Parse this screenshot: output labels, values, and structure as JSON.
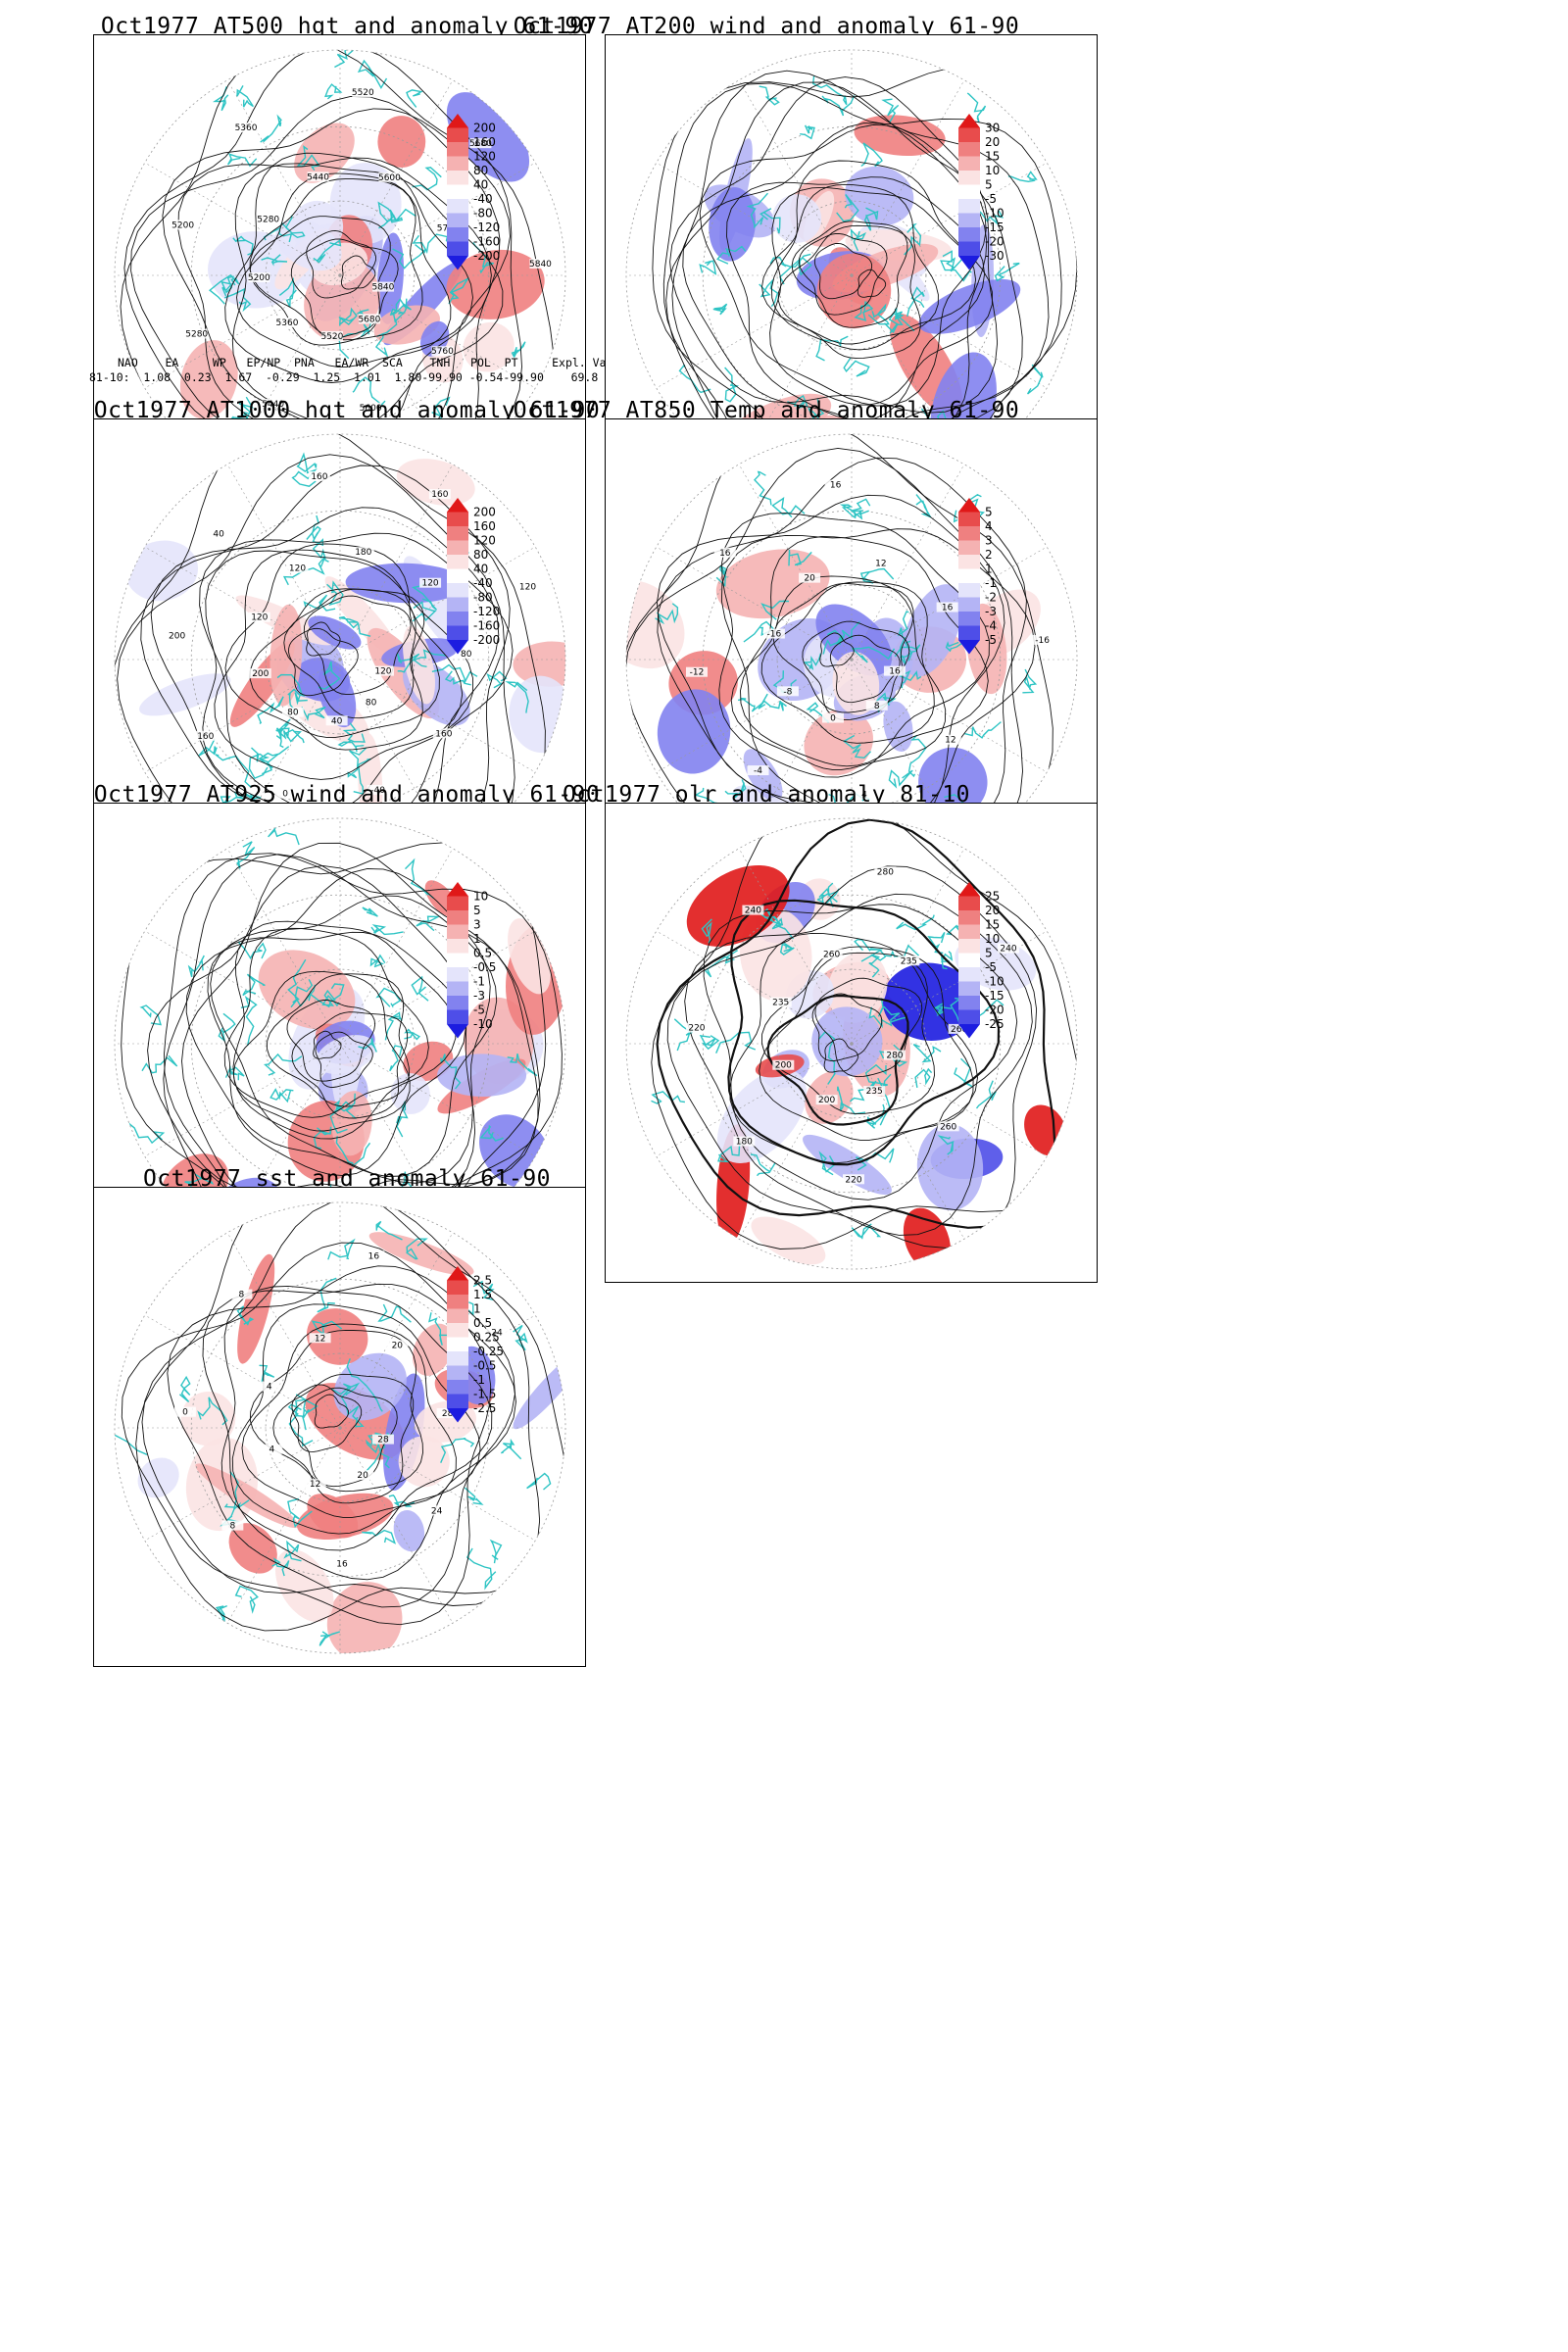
{
  "panels": [
    {
      "id": "hgt500",
      "title": "Oct1977 AT500 hgt and anomaly 61-90",
      "colorbar": [
        "200",
        "160",
        "120",
        "80",
        "40",
        "-40",
        "-80",
        "-120",
        "-160",
        "-200"
      ],
      "contour_labels": [
        "5840",
        "5760",
        "5680",
        "5600",
        "5520",
        "5440",
        "5360",
        "5280",
        "5200",
        "5200",
        "5280",
        "5360",
        "5440",
        "5520",
        "5600",
        "5680",
        "5760",
        "5840"
      ],
      "pattern": "heights"
    },
    {
      "id": "wind200",
      "title": "Oct1977 AT200 wind and anomaly 61-90",
      "colorbar": [
        "30",
        "20",
        "15",
        "10",
        "5",
        "-5",
        "-10",
        "-15",
        "-20",
        "-30"
      ],
      "contour_labels": [],
      "pattern": "streamlines"
    },
    {
      "id": "hgt1000",
      "title": "Oct1977 AT1000 hgt and anomaly 61-90",
      "colorbar": [
        "200",
        "160",
        "120",
        "80",
        "40",
        "-40",
        "-80",
        "-120",
        "-160",
        "-200"
      ],
      "contour_labels": [
        "120",
        "160",
        "80",
        "-40",
        "40",
        "0",
        "80",
        "160",
        "200",
        "200",
        "120",
        "40",
        "120",
        "160",
        "180",
        "160",
        "120",
        "120",
        "80"
      ],
      "pattern": "heights1000"
    },
    {
      "id": "temp850",
      "title": "Oct1977 AT850 Temp and anomaly 61-90",
      "colorbar": [
        "5",
        "4",
        "3",
        "2",
        "1",
        "-1",
        "-2",
        "-3",
        "-4",
        "-5"
      ],
      "contour_labels": [
        "16",
        "12",
        "8",
        "4",
        "0",
        "-4",
        "-8",
        "-12",
        "-16",
        "16",
        "20",
        "16",
        "12",
        "20",
        "16",
        "-16"
      ],
      "pattern": "temp"
    },
    {
      "id": "wind925",
      "title": "Oct1977 AT925 wind and anomaly 61-90",
      "colorbar": [
        "10",
        "5",
        "3",
        "1",
        "0.5",
        "-0.5",
        "-1",
        "-3",
        "-5",
        "-10"
      ],
      "contour_labels": [],
      "pattern": "streamlines2"
    },
    {
      "id": "olr",
      "title": "Oct1977 olr and anomaly 81-10",
      "colorbar": [
        "25",
        "20",
        "15",
        "10",
        "5",
        "-5",
        "-10",
        "-15",
        "-20",
        "-25"
      ],
      "contour_labels": [
        "280",
        "260",
        "235",
        "220",
        "200",
        "180",
        "200",
        "220",
        "235",
        "240",
        "260",
        "280",
        "235",
        "240",
        "260"
      ],
      "pattern": "olr"
    },
    {
      "id": "sst",
      "title": "Oct1977 sst and anomaly 61-90",
      "colorbar": [
        "2.5",
        "1.5",
        "1",
        "0.5",
        "0.25",
        "-0.25",
        "-0.5",
        "-1",
        "-1.5",
        "-2.5"
      ],
      "contour_labels": [
        "28",
        "24",
        "20",
        "16",
        "12",
        "8",
        "4",
        "0",
        "4",
        "8",
        "12",
        "16",
        "20",
        "24",
        "28"
      ],
      "pattern": "sst"
    }
  ],
  "teleconnection": {
    "header": "NAO    EA     WP   EP/NP  PNA   EA/WR  SCA    TNH   POL  PT     Expl. Var.",
    "row": "81-10:  1.08  0.23  1.67  -0.29  1.25  1.01  1.80-99.90 -0.54-99.90    69.8"
  },
  "colors": {
    "coast": "#2ec4c4",
    "contour": "#111111",
    "grid": "#9a9a9a",
    "pos": [
      "#fbe3e3",
      "#f5b2b2",
      "#ef8080",
      "#e84c4c",
      "#e01818"
    ],
    "neg": [
      "#e4e4fb",
      "#b4b4f5",
      "#8282ef",
      "#4e4ee8",
      "#1c1ce0"
    ]
  }
}
